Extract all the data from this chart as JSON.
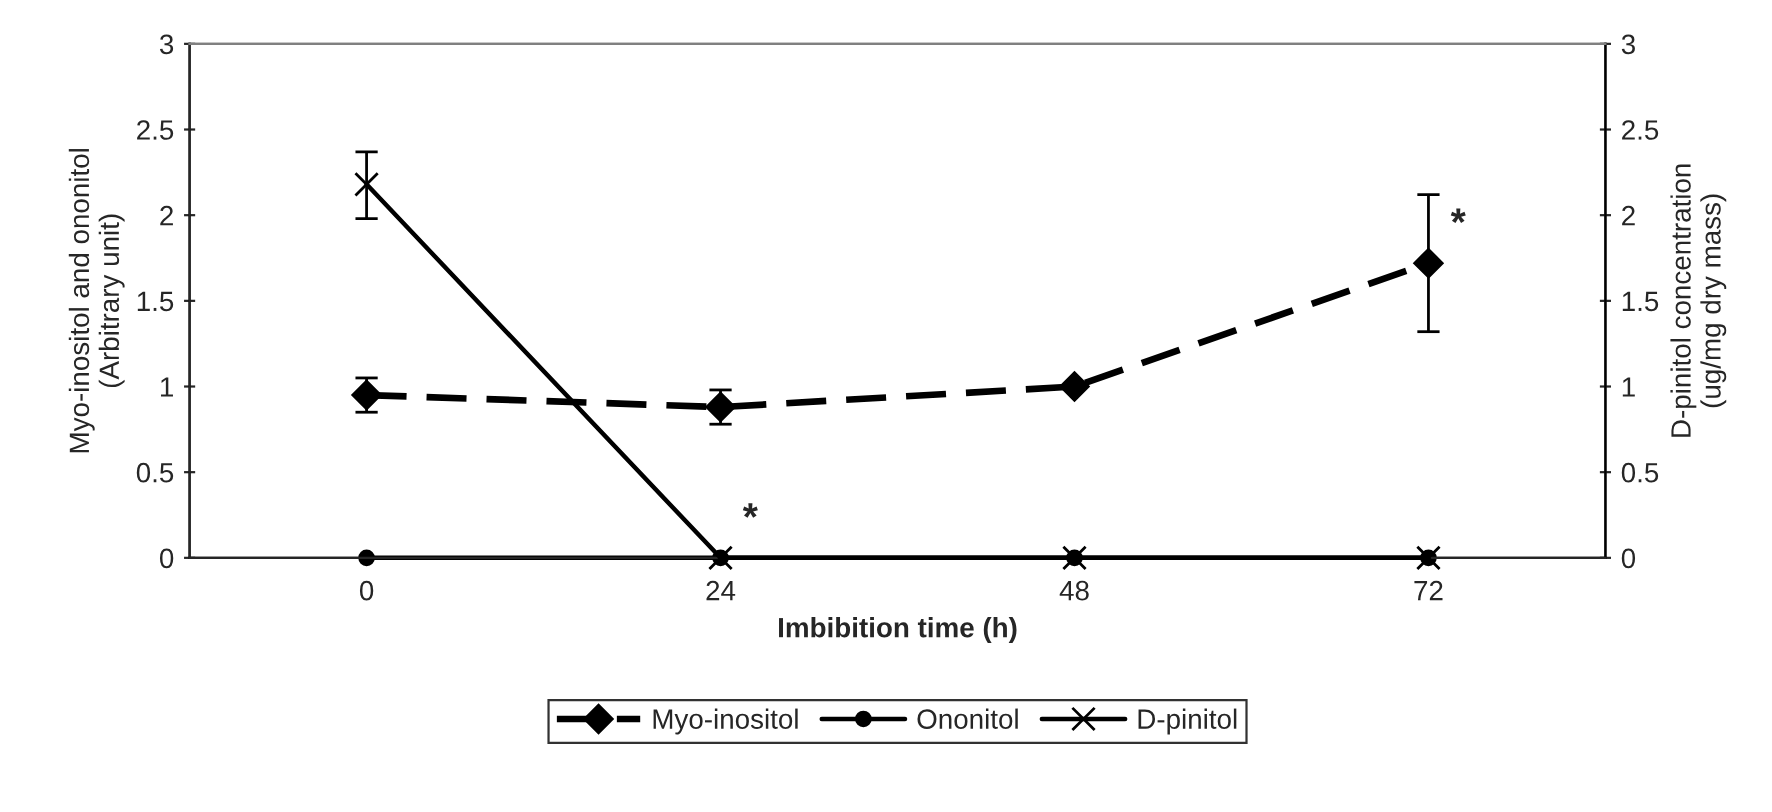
{
  "chart_data": {
    "type": "line",
    "xlabel": "Imbibition time (h)",
    "ylabel": "Myo-inositol and ononitol\n(Arbitrary unit)",
    "y2label": "D-pinitol concentration\n(ug/mg dry mass)",
    "categories": [
      "0",
      "24",
      "48",
      "72"
    ],
    "series": [
      {
        "name": "Myo-inositol",
        "color": "#000000",
        "values": [
          0.95,
          0.88,
          1.0,
          1.72
        ],
        "errors": [
          0.1,
          0.1,
          null,
          0.4
        ],
        "marker": "diamond",
        "line_style": "dashed"
      },
      {
        "name": "Ononitol",
        "color": "#000000",
        "values": [
          0,
          0,
          0,
          0
        ],
        "marker": "circle",
        "line_style": "solid"
      },
      {
        "name": "D-pinitol",
        "color": "#000000",
        "values": [
          2.18,
          0,
          0,
          0
        ],
        "errors": [
          [
            1.98,
            2.37
          ],
          null,
          null,
          null
        ],
        "marker": "cross",
        "line_style": "solid",
        "axis": "y2"
      }
    ],
    "ylim": [
      0,
      3
    ],
    "yticks": [
      0,
      0.5,
      1,
      1.5,
      2,
      2.5,
      3
    ],
    "y2lim": [
      0,
      3
    ],
    "y2ticks": [
      0,
      0.5,
      1,
      1.5,
      2,
      2.5,
      3
    ],
    "annotations": [
      {
        "text": "*",
        "x": "24",
        "y": 0
      },
      {
        "text": "*",
        "x": "72",
        "y": 1.72
      }
    ],
    "grid": false,
    "legend": "bottom"
  }
}
